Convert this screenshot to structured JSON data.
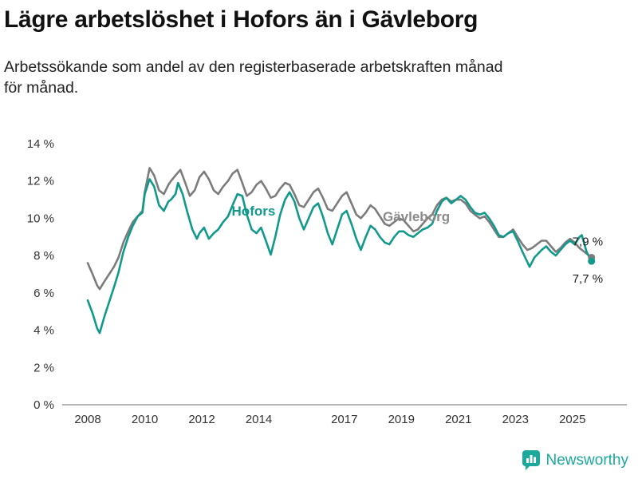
{
  "header": {
    "title": "Lägre arbetslöshet i Hofors än i Gävleborg",
    "subtitle_line1": "Arbetssökande som andel av den registerbaserade arbetskraften månad",
    "subtitle_line2": "för månad."
  },
  "footer": {
    "brand": "Newsworthy"
  },
  "colors": {
    "hofors": "#11998c",
    "gavleborg": "#7c7c7c",
    "axis_line": "#8a8a8a",
    "tick_text": "#333333",
    "end_label_text": "#1a1a1a",
    "brand_teal": "#1ba99c"
  },
  "chart_data": {
    "type": "line",
    "title": "Lägre arbetslöshet i Hofors än i Gävleborg",
    "subtitle": "Arbetssökande som andel av den registerbaserade arbetskraften månad för månad.",
    "xlabel": "",
    "ylabel": "",
    "ylim": [
      0,
      14
    ],
    "xlim": [
      2007.15,
      2026.9
    ],
    "grid": "off",
    "legend_position": "inline-labels",
    "y_ticks": [
      {
        "v": 14,
        "label": "14 %"
      },
      {
        "v": 12,
        "label": "12 %"
      },
      {
        "v": 10,
        "label": "10 %"
      },
      {
        "v": 8,
        "label": "8 %"
      },
      {
        "v": 6,
        "label": "6 %"
      },
      {
        "v": 4,
        "label": "4 %"
      },
      {
        "v": 2,
        "label": "2 %"
      },
      {
        "v": 0,
        "label": "0 %"
      }
    ],
    "x_ticks": [
      {
        "v": 2008,
        "label": "2008"
      },
      {
        "v": 2010,
        "label": "2010"
      },
      {
        "v": 2012,
        "label": "2012"
      },
      {
        "v": 2014,
        "label": "2014"
      },
      {
        "v": 2017,
        "label": "2017"
      },
      {
        "v": 2019,
        "label": "2019"
      },
      {
        "v": 2021,
        "label": "2021"
      },
      {
        "v": 2023,
        "label": "2023"
      },
      {
        "v": 2025,
        "label": "2025"
      }
    ],
    "series_labels": [
      {
        "text": "Hofors",
        "x": 2013.05,
        "y": 10.15,
        "color": "#11998c"
      },
      {
        "text": "Gävleborg",
        "x": 2018.35,
        "y": 9.85,
        "color": "#8a8a8a"
      }
    ],
    "series": [
      {
        "id": "gavleborg",
        "name": "Gävleborg",
        "color": "#7c7c7c",
        "end_label": "7,9 %",
        "end_label_offset": [
          -24,
          -15
        ],
        "points": [
          [
            2008.0,
            7.6
          ],
          [
            2008.17,
            7.0
          ],
          [
            2008.33,
            6.4
          ],
          [
            2008.42,
            6.2
          ],
          [
            2008.58,
            6.6
          ],
          [
            2008.75,
            7.0
          ],
          [
            2008.92,
            7.4
          ],
          [
            2009.08,
            7.9
          ],
          [
            2009.25,
            8.7
          ],
          [
            2009.42,
            9.3
          ],
          [
            2009.58,
            9.8
          ],
          [
            2009.75,
            10.1
          ],
          [
            2009.92,
            10.4
          ],
          [
            2010.0,
            11.4
          ],
          [
            2010.17,
            12.7
          ],
          [
            2010.33,
            12.3
          ],
          [
            2010.5,
            11.5
          ],
          [
            2010.67,
            11.3
          ],
          [
            2010.83,
            11.8
          ],
          [
            2010.92,
            12.0
          ],
          [
            2011.08,
            12.3
          ],
          [
            2011.25,
            12.6
          ],
          [
            2011.42,
            11.9
          ],
          [
            2011.58,
            11.2
          ],
          [
            2011.75,
            11.5
          ],
          [
            2011.92,
            12.2
          ],
          [
            2012.08,
            12.5
          ],
          [
            2012.25,
            12.1
          ],
          [
            2012.42,
            11.5
          ],
          [
            2012.58,
            11.3
          ],
          [
            2012.75,
            11.7
          ],
          [
            2012.92,
            12.0
          ],
          [
            2013.08,
            12.4
          ],
          [
            2013.25,
            12.6
          ],
          [
            2013.42,
            11.9
          ],
          [
            2013.58,
            11.2
          ],
          [
            2013.75,
            11.4
          ],
          [
            2013.92,
            11.8
          ],
          [
            2014.08,
            12.0
          ],
          [
            2014.25,
            11.6
          ],
          [
            2014.42,
            11.1
          ],
          [
            2014.58,
            11.2
          ],
          [
            2014.75,
            11.6
          ],
          [
            2014.92,
            11.9
          ],
          [
            2015.08,
            11.8
          ],
          [
            2015.25,
            11.3
          ],
          [
            2015.42,
            10.7
          ],
          [
            2015.58,
            10.6
          ],
          [
            2015.75,
            11.0
          ],
          [
            2015.92,
            11.4
          ],
          [
            2016.08,
            11.6
          ],
          [
            2016.25,
            11.1
          ],
          [
            2016.42,
            10.5
          ],
          [
            2016.58,
            10.4
          ],
          [
            2016.75,
            10.8
          ],
          [
            2016.92,
            11.2
          ],
          [
            2017.08,
            11.4
          ],
          [
            2017.25,
            10.8
          ],
          [
            2017.42,
            10.2
          ],
          [
            2017.58,
            10.0
          ],
          [
            2017.75,
            10.3
          ],
          [
            2017.92,
            10.7
          ],
          [
            2018.08,
            10.5
          ],
          [
            2018.25,
            10.1
          ],
          [
            2018.42,
            9.7
          ],
          [
            2018.58,
            9.6
          ],
          [
            2018.75,
            9.8
          ],
          [
            2018.92,
            10.0
          ],
          [
            2019.08,
            9.9
          ],
          [
            2019.25,
            9.6
          ],
          [
            2019.42,
            9.3
          ],
          [
            2019.58,
            9.4
          ],
          [
            2019.75,
            9.7
          ],
          [
            2019.92,
            10.0
          ],
          [
            2020.08,
            10.2
          ],
          [
            2020.25,
            10.7
          ],
          [
            2020.42,
            11.0
          ],
          [
            2020.58,
            11.1
          ],
          [
            2020.75,
            10.9
          ],
          [
            2020.92,
            11.0
          ],
          [
            2021.08,
            11.0
          ],
          [
            2021.25,
            10.8
          ],
          [
            2021.42,
            10.4
          ],
          [
            2021.58,
            10.2
          ],
          [
            2021.75,
            10.0
          ],
          [
            2021.92,
            10.1
          ],
          [
            2022.08,
            9.8
          ],
          [
            2022.25,
            9.4
          ],
          [
            2022.42,
            9.0
          ],
          [
            2022.58,
            9.0
          ],
          [
            2022.75,
            9.2
          ],
          [
            2022.92,
            9.4
          ],
          [
            2023.08,
            9.0
          ],
          [
            2023.25,
            8.6
          ],
          [
            2023.42,
            8.3
          ],
          [
            2023.58,
            8.4
          ],
          [
            2023.75,
            8.6
          ],
          [
            2023.92,
            8.8
          ],
          [
            2024.08,
            8.8
          ],
          [
            2024.25,
            8.5
          ],
          [
            2024.42,
            8.2
          ],
          [
            2024.58,
            8.4
          ],
          [
            2024.75,
            8.7
          ],
          [
            2024.92,
            8.9
          ],
          [
            2025.08,
            8.7
          ],
          [
            2025.25,
            8.4
          ],
          [
            2025.42,
            8.2
          ],
          [
            2025.58,
            8.0
          ],
          [
            2025.67,
            7.9
          ]
        ]
      },
      {
        "id": "hofors",
        "name": "Hofors",
        "color": "#11998c",
        "end_label": "7,7 %",
        "end_label_offset": [
          -24,
          27
        ],
        "points": [
          [
            2008.0,
            5.6
          ],
          [
            2008.17,
            4.9
          ],
          [
            2008.33,
            4.1
          ],
          [
            2008.42,
            3.85
          ],
          [
            2008.58,
            4.7
          ],
          [
            2008.75,
            5.5
          ],
          [
            2008.92,
            6.3
          ],
          [
            2009.08,
            7.1
          ],
          [
            2009.25,
            8.2
          ],
          [
            2009.42,
            9.0
          ],
          [
            2009.58,
            9.6
          ],
          [
            2009.75,
            10.1
          ],
          [
            2009.92,
            10.3
          ],
          [
            2010.0,
            11.3
          ],
          [
            2010.17,
            12.1
          ],
          [
            2010.33,
            11.7
          ],
          [
            2010.5,
            10.7
          ],
          [
            2010.67,
            10.4
          ],
          [
            2010.83,
            10.9
          ],
          [
            2010.92,
            11.0
          ],
          [
            2011.08,
            11.3
          ],
          [
            2011.17,
            11.9
          ],
          [
            2011.33,
            11.3
          ],
          [
            2011.5,
            10.3
          ],
          [
            2011.67,
            9.4
          ],
          [
            2011.83,
            8.9
          ],
          [
            2011.92,
            9.2
          ],
          [
            2012.08,
            9.5
          ],
          [
            2012.25,
            8.9
          ],
          [
            2012.42,
            9.2
          ],
          [
            2012.58,
            9.4
          ],
          [
            2012.75,
            9.8
          ],
          [
            2012.92,
            10.1
          ],
          [
            2013.08,
            10.7
          ],
          [
            2013.25,
            11.3
          ],
          [
            2013.42,
            11.2
          ],
          [
            2013.58,
            10.2
          ],
          [
            2013.75,
            9.4
          ],
          [
            2013.92,
            9.2
          ],
          [
            2014.08,
            9.5
          ],
          [
            2014.25,
            8.8
          ],
          [
            2014.42,
            8.05
          ],
          [
            2014.58,
            9.0
          ],
          [
            2014.75,
            10.2
          ],
          [
            2014.92,
            11.0
          ],
          [
            2015.08,
            11.4
          ],
          [
            2015.25,
            10.9
          ],
          [
            2015.42,
            10.0
          ],
          [
            2015.58,
            9.4
          ],
          [
            2015.75,
            10.0
          ],
          [
            2015.92,
            10.6
          ],
          [
            2016.08,
            10.8
          ],
          [
            2016.25,
            10.1
          ],
          [
            2016.42,
            9.2
          ],
          [
            2016.58,
            8.6
          ],
          [
            2016.75,
            9.4
          ],
          [
            2016.92,
            10.2
          ],
          [
            2017.08,
            10.4
          ],
          [
            2017.25,
            9.7
          ],
          [
            2017.42,
            8.9
          ],
          [
            2017.58,
            8.3
          ],
          [
            2017.75,
            9.0
          ],
          [
            2017.92,
            9.6
          ],
          [
            2018.08,
            9.4
          ],
          [
            2018.25,
            9.0
          ],
          [
            2018.42,
            8.7
          ],
          [
            2018.58,
            8.6
          ],
          [
            2018.75,
            9.0
          ],
          [
            2018.92,
            9.3
          ],
          [
            2019.08,
            9.3
          ],
          [
            2019.25,
            9.1
          ],
          [
            2019.42,
            9.0
          ],
          [
            2019.58,
            9.2
          ],
          [
            2019.75,
            9.4
          ],
          [
            2019.92,
            9.5
          ],
          [
            2020.08,
            9.7
          ],
          [
            2020.25,
            10.4
          ],
          [
            2020.42,
            10.9
          ],
          [
            2020.58,
            11.1
          ],
          [
            2020.75,
            10.8
          ],
          [
            2020.92,
            11.0
          ],
          [
            2021.08,
            11.2
          ],
          [
            2021.25,
            11.0
          ],
          [
            2021.42,
            10.6
          ],
          [
            2021.58,
            10.3
          ],
          [
            2021.75,
            10.2
          ],
          [
            2021.92,
            10.3
          ],
          [
            2022.08,
            10.0
          ],
          [
            2022.25,
            9.6
          ],
          [
            2022.42,
            9.1
          ],
          [
            2022.58,
            9.0
          ],
          [
            2022.75,
            9.2
          ],
          [
            2022.92,
            9.3
          ],
          [
            2023.08,
            8.8
          ],
          [
            2023.25,
            8.2
          ],
          [
            2023.5,
            7.4
          ],
          [
            2023.67,
            7.9
          ],
          [
            2023.92,
            8.3
          ],
          [
            2024.08,
            8.5
          ],
          [
            2024.25,
            8.2
          ],
          [
            2024.42,
            8.0
          ],
          [
            2024.58,
            8.3
          ],
          [
            2024.75,
            8.6
          ],
          [
            2024.92,
            8.8
          ],
          [
            2025.08,
            8.6
          ],
          [
            2025.25,
            9.0
          ],
          [
            2025.33,
            9.1
          ],
          [
            2025.5,
            8.2
          ],
          [
            2025.67,
            7.7
          ]
        ]
      }
    ]
  }
}
